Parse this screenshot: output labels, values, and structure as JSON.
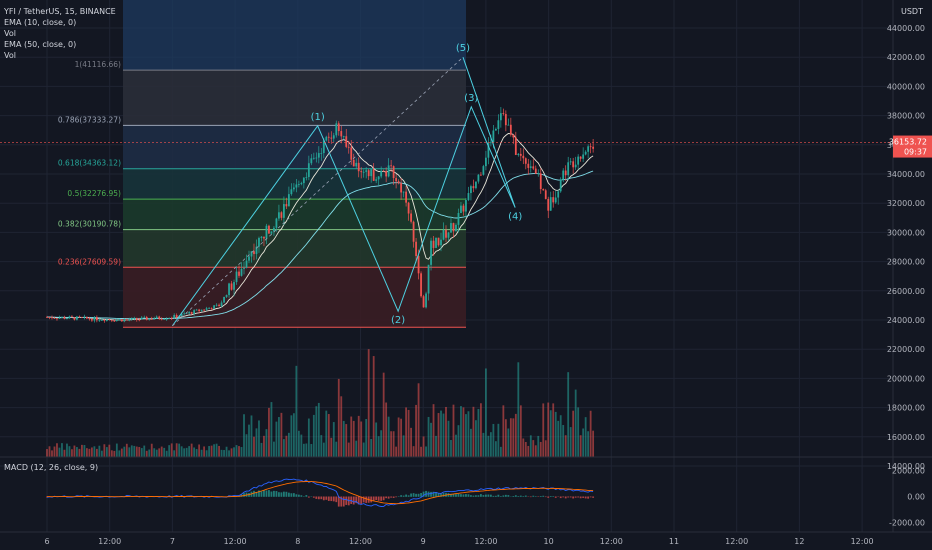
{
  "header": {
    "title": "YFI / TetherUS, 15, BINANCE",
    "indicators": [
      "EMA (10, close, 0)",
      "Vol",
      "EMA (50, close, 0)",
      "Vol"
    ],
    "macd_label": "MACD (12, 26, close, 9)",
    "currency": "USDT"
  },
  "colors": {
    "background": "#131722",
    "grid": "#1f2433",
    "up": "#26a69a",
    "down": "#ef5350",
    "wave": "#4dd0e1",
    "macd_line": "#2962ff",
    "signal_line": "#ff6d00"
  },
  "price_badges": {
    "last_price": "36153.72",
    "countdown": "09:37"
  },
  "chart_data": {
    "type": "candlestick",
    "price_axis": {
      "ticks": [
        "44000.00",
        "42000.00",
        "40000.00",
        "38000.00",
        "36000.00",
        "34000.00",
        "32000.00",
        "30000.00",
        "28000.00",
        "26000.00",
        "24000.00",
        "22000.00",
        "20000.00",
        "18000.00",
        "16000.00",
        "14000.00"
      ],
      "ylim": [
        12800,
        45500
      ]
    },
    "macd_axis": {
      "ticks": [
        "2000.00",
        "0.00",
        "-2000.00"
      ]
    },
    "time_axis": {
      "ticks": [
        "6",
        "12:00",
        "7",
        "12:00",
        "8",
        "12:00",
        "9",
        "12:00",
        "10",
        "12:00",
        "11",
        "12:00",
        "12",
        "12:00"
      ]
    },
    "fibonacci": [
      {
        "label": "1(41116.66)",
        "price": 41116.66,
        "color": "#787b86"
      },
      {
        "label": "0.786(37333.27)",
        "price": 37333.27,
        "color": "#9aa3b5"
      },
      {
        "label": "0.618(34363.12)",
        "price": 34363.12,
        "color": "#26a69a"
      },
      {
        "label": "0.5(32276.95)",
        "price": 32276.95,
        "color": "#4caf50"
      },
      {
        "label": "0.382(30190.78)",
        "price": 30190.78,
        "color": "#81c784"
      },
      {
        "label": "0.236(27609.59)",
        "price": 27609.59,
        "color": "#ef5350"
      },
      {
        "label": "",
        "price": 23500,
        "color": "#ef5350"
      }
    ],
    "elliott_waves": [
      {
        "label": "(1)",
        "price": 37300,
        "time_index": 37
      },
      {
        "label": "(2)",
        "price": 24600,
        "time_index": 48
      },
      {
        "label": "(3)",
        "price": 38600,
        "time_index": 58
      },
      {
        "label": "(4)",
        "price": 31700,
        "time_index": 64
      },
      {
        "label": "(5)",
        "price": 42000,
        "time_index": 75
      }
    ]
  }
}
